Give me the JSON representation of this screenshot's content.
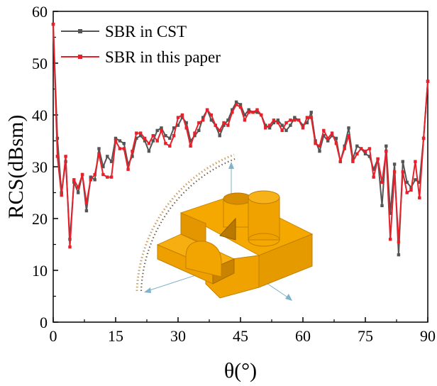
{
  "chart_data": {
    "type": "line",
    "xlabel": "θ(°)",
    "ylabel": "RCS(dBsm)",
    "xlim": [
      0,
      90
    ],
    "ylim": [
      0,
      60
    ],
    "x_ticks": [
      0,
      15,
      30,
      45,
      60,
      75,
      90
    ],
    "y_ticks": [
      0,
      10,
      20,
      30,
      40,
      50,
      60
    ],
    "legend_position": "top-left",
    "grid": false,
    "series": [
      {
        "name": "SBR in CST",
        "color": "#555555",
        "x": [
          0,
          1,
          2,
          3,
          4,
          5,
          6,
          7,
          8,
          9,
          10,
          11,
          12,
          13,
          14,
          15,
          16,
          17,
          18,
          19,
          20,
          21,
          22,
          23,
          24,
          25,
          26,
          27,
          28,
          29,
          30,
          31,
          32,
          33,
          34,
          35,
          36,
          37,
          38,
          39,
          40,
          41,
          42,
          43,
          44,
          45,
          46,
          47,
          48,
          49,
          50,
          51,
          52,
          53,
          54,
          55,
          56,
          57,
          58,
          59,
          60,
          61,
          62,
          63,
          64,
          65,
          66,
          67,
          68,
          69,
          70,
          71,
          72,
          73,
          74,
          75,
          76,
          77,
          78,
          79,
          80,
          81,
          82,
          83,
          84,
          85,
          86,
          87,
          88,
          89,
          90
        ],
        "values": [
          57.5,
          35.5,
          25,
          31,
          16,
          27,
          25,
          28.5,
          21.5,
          28,
          27.5,
          33.5,
          30,
          32,
          31,
          35.5,
          35,
          34.5,
          30.5,
          32,
          35.5,
          36,
          35,
          33,
          35,
          37,
          37.5,
          36,
          35.5,
          37.5,
          38,
          39.5,
          38.5,
          35,
          36,
          37,
          39.5,
          41,
          39,
          38,
          36,
          38,
          39,
          41,
          42.5,
          42,
          40,
          41,
          40.5,
          40.5,
          40,
          38,
          37.5,
          38.5,
          39,
          38,
          37,
          38,
          39.5,
          39,
          38,
          38.5,
          40.5,
          35,
          33,
          36,
          35,
          36,
          35.5,
          31,
          34,
          37.5,
          31.5,
          34,
          33.5,
          32.5,
          32,
          29.5,
          31.5,
          22.5,
          34,
          21,
          30.5,
          13,
          31,
          27,
          26,
          27.5,
          27,
          35.5,
          46.5
        ]
      },
      {
        "name": "SBR in this paper",
        "color": "#e8202a",
        "x": [
          0,
          1,
          2,
          3,
          4,
          5,
          6,
          7,
          8,
          9,
          10,
          11,
          12,
          13,
          14,
          15,
          16,
          17,
          18,
          19,
          20,
          21,
          22,
          23,
          24,
          25,
          26,
          27,
          28,
          29,
          30,
          31,
          32,
          33,
          34,
          35,
          36,
          37,
          38,
          39,
          40,
          41,
          42,
          43,
          44,
          45,
          46,
          47,
          48,
          49,
          50,
          51,
          52,
          53,
          54,
          55,
          56,
          57,
          58,
          59,
          60,
          61,
          62,
          63,
          64,
          65,
          66,
          67,
          68,
          69,
          70,
          71,
          72,
          73,
          74,
          75,
          76,
          77,
          78,
          79,
          80,
          81,
          82,
          83,
          84,
          85,
          86,
          87,
          88,
          89,
          90
        ],
        "values": [
          57.5,
          32,
          24.5,
          32,
          14.5,
          27.5,
          26,
          28.5,
          23,
          27.5,
          28.5,
          32.5,
          28.5,
          28,
          28,
          35,
          33.5,
          33.5,
          29.5,
          33,
          36.5,
          36.5,
          35.5,
          34.5,
          36,
          35,
          37,
          34.5,
          34,
          36,
          39.5,
          40,
          37.5,
          34,
          36.5,
          38.5,
          39,
          41,
          40,
          38,
          37,
          38.5,
          38,
          40.5,
          42,
          41.5,
          39,
          40.5,
          40.5,
          41,
          40,
          37.5,
          38,
          39,
          38.5,
          37,
          38.5,
          39,
          39,
          39,
          37.5,
          39.5,
          39.5,
          34.5,
          34,
          37,
          35.5,
          36.5,
          34.5,
          31,
          33.5,
          36,
          31,
          32.5,
          33.5,
          33,
          33.5,
          28,
          31.5,
          27,
          33,
          16,
          29,
          15.5,
          29,
          25,
          25.5,
          31,
          24,
          35.5,
          46.5
        ]
      }
    ]
  },
  "inset_figure": {
    "description_icon": "3d-model-icon",
    "colors": {
      "body": "#f5a800",
      "body_shadow": "#d98e00",
      "body_dark": "#b97800",
      "arc": "#c7a06a"
    }
  }
}
